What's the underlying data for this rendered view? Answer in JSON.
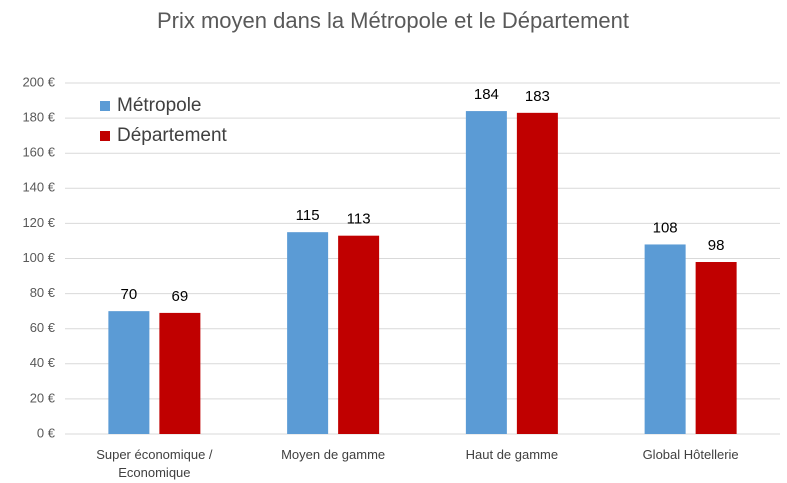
{
  "chart_data": {
    "type": "bar",
    "title": "Prix moyen dans la Métropole et le Département",
    "categories": [
      "Super économique / Economique",
      "Moyen de gamme",
      "Haut de gamme",
      "Global Hôtellerie"
    ],
    "series": [
      {
        "name": "Métropole",
        "color": "#5b9bd5",
        "values": [
          70,
          115,
          184,
          108
        ]
      },
      {
        "name": "Département",
        "color": "#c00000",
        "values": [
          69,
          113,
          183,
          98
        ]
      }
    ],
    "ylim": [
      0,
      200
    ],
    "yticks": [
      {
        "value": 0,
        "label": "0 €"
      },
      {
        "value": 20,
        "label": "20 €"
      },
      {
        "value": 40,
        "label": "40 €"
      },
      {
        "value": 60,
        "label": "60 €"
      },
      {
        "value": 80,
        "label": "80 €"
      },
      {
        "value": 100,
        "label": "100 €"
      },
      {
        "value": 120,
        "label": "120 €"
      },
      {
        "value": 140,
        "label": "140 €"
      },
      {
        "value": 160,
        "label": "160 €"
      },
      {
        "value": 180,
        "label": "180 €"
      },
      {
        "value": 200,
        "label": "200 €"
      }
    ],
    "grid": true,
    "legend": "top-left"
  }
}
